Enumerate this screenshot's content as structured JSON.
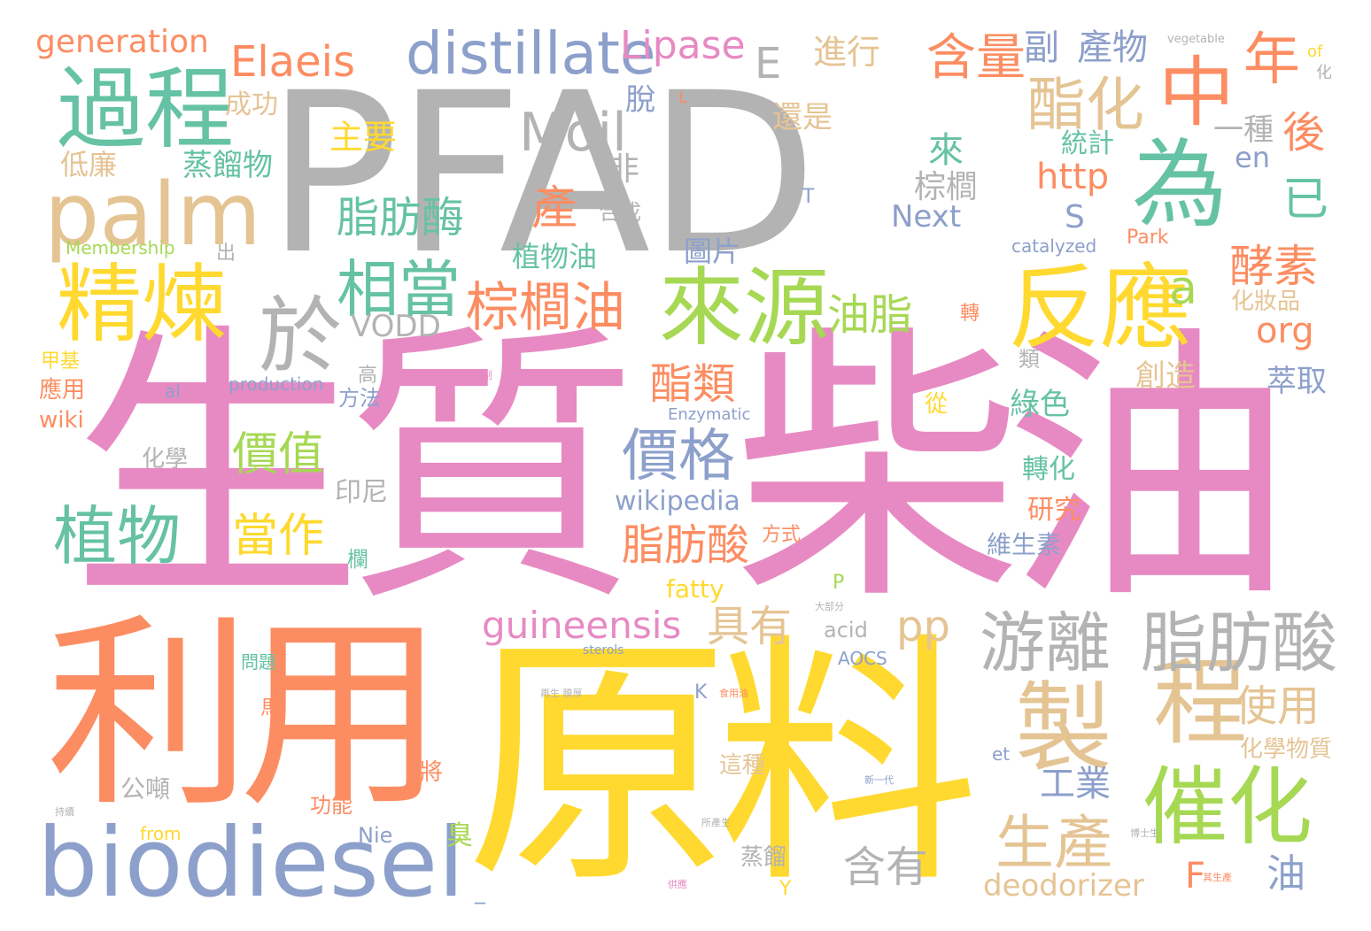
{
  "palette": {
    "pink": "#e78ac3",
    "yellow": "#ffd92f",
    "orange": "#fc8d62",
    "blue": "#8da0cb",
    "teal": "#66c2a5",
    "green": "#a6d854",
    "tan": "#e5c494",
    "gray": "#b3b3b3"
  },
  "words": [
    {
      "text": "柴油",
      "color": "pink"
    },
    {
      "text": "生質",
      "color": "pink"
    },
    {
      "text": "PFAD",
      "color": "gray"
    },
    {
      "text": "原料",
      "color": "yellow"
    },
    {
      "text": "利用",
      "color": "orange"
    },
    {
      "text": "biodiesel",
      "color": "blue"
    },
    {
      "text": "palm",
      "color": "tan"
    },
    {
      "text": "過程",
      "color": "teal"
    },
    {
      "text": "為",
      "color": "teal"
    },
    {
      "text": "反應",
      "color": "yellow"
    },
    {
      "text": "中",
      "color": "orange"
    },
    {
      "text": "來源",
      "color": "green"
    },
    {
      "text": "精煉",
      "color": "yellow"
    },
    {
      "text": "製",
      "color": "tan"
    },
    {
      "text": "程",
      "color": "tan"
    },
    {
      "text": "催化",
      "color": "green"
    },
    {
      "text": "於",
      "color": "gray"
    },
    {
      "text": "游離",
      "color": "gray"
    },
    {
      "text": "脂肪酸",
      "color": "gray"
    },
    {
      "text": "distillate",
      "color": "blue"
    },
    {
      "text": "相當",
      "color": "teal"
    },
    {
      "text": "棕櫚油",
      "color": "orange"
    },
    {
      "text": "價格",
      "color": "blue"
    },
    {
      "text": "植物",
      "color": "teal"
    },
    {
      "text": "酯化",
      "color": "tan"
    },
    {
      "text": "年",
      "color": "orange"
    },
    {
      "text": "生產",
      "color": "tan"
    },
    {
      "text": "Elaeis",
      "color": "orange"
    },
    {
      "text": "含量",
      "color": "orange"
    },
    {
      "text": "Moil",
      "color": "gray"
    },
    {
      "text": "guineensis",
      "color": "pink"
    },
    {
      "text": "脂肪酸",
      "color": "orange"
    },
    {
      "text": "油脂",
      "color": "green"
    },
    {
      "text": "酵素",
      "color": "orange"
    },
    {
      "text": "使用",
      "color": "tan"
    },
    {
      "text": "Lipase",
      "color": "pink"
    },
    {
      "text": "generation",
      "color": "orange"
    },
    {
      "text": "E",
      "color": "gray"
    },
    {
      "text": "a",
      "color": "green"
    },
    {
      "text": "價值",
      "color": "green"
    },
    {
      "text": "當作",
      "color": "yellow"
    },
    {
      "text": "脂肪酶",
      "color": "teal"
    },
    {
      "text": "酯類",
      "color": "orange"
    },
    {
      "text": "具有",
      "color": "tan"
    },
    {
      "text": "pp",
      "color": "tan"
    },
    {
      "text": "含有",
      "color": "gray"
    },
    {
      "text": "deodorizer",
      "color": "tan"
    },
    {
      "text": "副",
      "color": "blue"
    },
    {
      "text": "產物",
      "color": "blue"
    },
    {
      "text": "進行",
      "color": "tan"
    },
    {
      "text": "後",
      "color": "orange"
    },
    {
      "text": "已",
      "color": "teal"
    },
    {
      "text": "產",
      "color": "orange"
    },
    {
      "text": "http",
      "color": "orange"
    },
    {
      "text": "org",
      "color": "orange"
    },
    {
      "text": "en",
      "color": "blue"
    },
    {
      "text": "S",
      "color": "blue"
    },
    {
      "text": "Next",
      "color": "blue"
    },
    {
      "text": "VODD",
      "color": "gray"
    },
    {
      "text": "wikipedia",
      "color": "blue"
    },
    {
      "text": "工業",
      "color": "blue"
    },
    {
      "text": "油",
      "color": "blue"
    },
    {
      "text": "F",
      "color": "orange"
    },
    {
      "text": "植物油",
      "color": "teal"
    },
    {
      "text": "蒸餾物",
      "color": "teal"
    },
    {
      "text": "成功",
      "color": "tan"
    },
    {
      "text": "主要",
      "color": "yellow"
    },
    {
      "text": "低廉",
      "color": "tan"
    },
    {
      "text": "來",
      "color": "teal"
    },
    {
      "text": "棕櫚",
      "color": "gray"
    },
    {
      "text": "還是",
      "color": "tan"
    },
    {
      "text": "一種",
      "color": "gray"
    },
    {
      "text": "統計",
      "color": "teal"
    },
    {
      "text": "脫",
      "color": "blue"
    },
    {
      "text": "非",
      "color": "gray"
    },
    {
      "text": "合成",
      "color": "gray"
    },
    {
      "text": "圖片",
      "color": "blue"
    },
    {
      "text": "化妝品",
      "color": "tan"
    },
    {
      "text": "創造",
      "color": "tan"
    },
    {
      "text": "萃取",
      "color": "blue"
    },
    {
      "text": "綠色",
      "color": "teal"
    },
    {
      "text": "轉化",
      "color": "teal"
    },
    {
      "text": "研究",
      "color": "orange"
    },
    {
      "text": "維生素",
      "color": "blue"
    },
    {
      "text": "化學物質",
      "color": "tan"
    },
    {
      "text": "這種",
      "color": "tan"
    },
    {
      "text": "公噸",
      "color": "gray"
    },
    {
      "text": "功能",
      "color": "orange"
    },
    {
      "text": "化學",
      "color": "gray"
    },
    {
      "text": "印尼",
      "color": "gray"
    },
    {
      "text": "方法",
      "color": "blue"
    },
    {
      "text": "應用",
      "color": "orange"
    },
    {
      "text": "甲基",
      "color": "yellow"
    },
    {
      "text": "wiki",
      "color": "orange"
    },
    {
      "text": "production",
      "color": "blue"
    },
    {
      "text": "Enzymatic",
      "color": "blue"
    },
    {
      "text": "Membership",
      "color": "green"
    },
    {
      "text": "catalyzed",
      "color": "blue"
    },
    {
      "text": "Park",
      "color": "orange"
    },
    {
      "text": "fatty",
      "color": "yellow"
    },
    {
      "text": "acid",
      "color": "gray"
    },
    {
      "text": "AOCS",
      "color": "blue"
    },
    {
      "text": "sterols",
      "color": "blue"
    },
    {
      "text": "from",
      "color": "yellow"
    },
    {
      "text": "Nie",
      "color": "blue"
    },
    {
      "text": "al",
      "color": "blue"
    },
    {
      "text": "et",
      "color": "blue"
    },
    {
      "text": "K",
      "color": "blue"
    },
    {
      "text": "P",
      "color": "green"
    },
    {
      "text": "T",
      "color": "blue"
    },
    {
      "text": "Y",
      "color": "yellow"
    },
    {
      "text": "L",
      "color": "orange"
    },
    {
      "text": "_",
      "color": "blue"
    },
    {
      "text": "of",
      "color": "yellow"
    },
    {
      "text": "vegetable",
      "color": "gray"
    },
    {
      "text": "化",
      "color": "gray"
    },
    {
      "text": "出",
      "color": "gray"
    },
    {
      "text": "轉",
      "color": "orange"
    },
    {
      "text": "高",
      "color": "gray"
    },
    {
      "text": "類",
      "color": "gray"
    },
    {
      "text": "從",
      "color": "yellow"
    },
    {
      "text": "欄",
      "color": "teal"
    },
    {
      "text": "方式",
      "color": "orange"
    },
    {
      "text": "馬",
      "color": "orange"
    },
    {
      "text": "問題",
      "color": "teal"
    },
    {
      "text": "將",
      "color": "orange"
    },
    {
      "text": "臭",
      "color": "green"
    },
    {
      "text": "蒸餾",
      "color": "gray"
    },
    {
      "text": "副",
      "color": "pink"
    },
    {
      "text": "出售生質",
      "color": "yellow"
    },
    {
      "text": "新一代",
      "color": "blue"
    },
    {
      "text": "食用油",
      "color": "orange"
    },
    {
      "text": "再生 膜厚",
      "color": "gray"
    },
    {
      "text": "大部分",
      "color": "gray"
    },
    {
      "text": "博士生",
      "color": "gray"
    },
    {
      "text": "其生產",
      "color": "orange"
    },
    {
      "text": "供應",
      "color": "pink"
    },
    {
      "text": "持續",
      "color": "gray"
    },
    {
      "text": "所產生",
      "color": "gray"
    }
  ]
}
